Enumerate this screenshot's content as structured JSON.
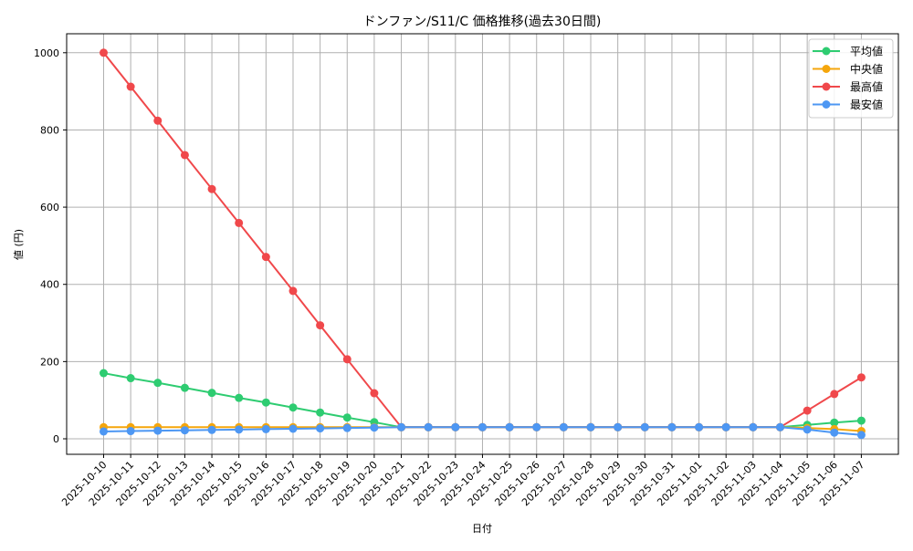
{
  "chart_data": {
    "type": "line",
    "title": "ドンファン/S11/C 価格推移(過去30日間)",
    "xlabel": "日付",
    "ylabel": "値 (円)",
    "ylim": [
      -40,
      1050
    ],
    "yticks": [
      0,
      200,
      400,
      600,
      800,
      1000
    ],
    "grid": true,
    "legend_position": "upper right",
    "x": [
      "2025-10-10",
      "2025-10-11",
      "2025-10-12",
      "2025-10-13",
      "2025-10-14",
      "2025-10-15",
      "2025-10-16",
      "2025-10-17",
      "2025-10-18",
      "2025-10-19",
      "2025-10-20",
      "2025-10-21",
      "2025-10-22",
      "2025-10-23",
      "2025-10-24",
      "2025-10-25",
      "2025-10-26",
      "2025-10-27",
      "2025-10-28",
      "2025-10-29",
      "2025-10-30",
      "2025-10-31",
      "2025-11-01",
      "2025-11-02",
      "2025-11-03",
      "2025-11-04",
      "2025-11-05",
      "2025-11-06",
      "2025-11-07"
    ],
    "series": [
      {
        "name": "平均値",
        "color": "#2ecc71",
        "values": [
          170,
          157,
          145,
          132,
          119,
          106,
          94,
          81,
          68,
          55,
          43,
          30,
          30,
          30,
          30,
          30,
          30,
          30,
          30,
          30,
          30,
          30,
          30,
          30,
          30,
          30,
          36,
          42,
          47
        ]
      },
      {
        "name": "中央値",
        "color": "#f5a60c",
        "values": [
          30,
          30,
          30,
          30,
          30,
          30,
          30,
          30,
          30,
          30,
          30,
          30,
          30,
          30,
          30,
          30,
          30,
          30,
          30,
          30,
          30,
          30,
          30,
          30,
          30,
          30,
          28,
          25,
          20
        ]
      },
      {
        "name": "最高値",
        "color": "#f0484b",
        "values": [
          1000,
          912,
          824,
          735,
          647,
          559,
          471,
          383,
          294,
          206,
          118,
          30,
          30,
          30,
          30,
          30,
          30,
          30,
          30,
          30,
          30,
          30,
          30,
          30,
          30,
          30,
          73,
          116,
          159
        ]
      },
      {
        "name": "最安値",
        "color": "#4d97f3",
        "values": [
          19,
          20,
          21,
          22,
          23,
          24,
          25,
          26,
          27,
          28,
          29,
          30,
          30,
          30,
          30,
          30,
          30,
          30,
          30,
          30,
          30,
          30,
          30,
          30,
          30,
          30,
          24,
          16,
          10
        ]
      }
    ]
  }
}
